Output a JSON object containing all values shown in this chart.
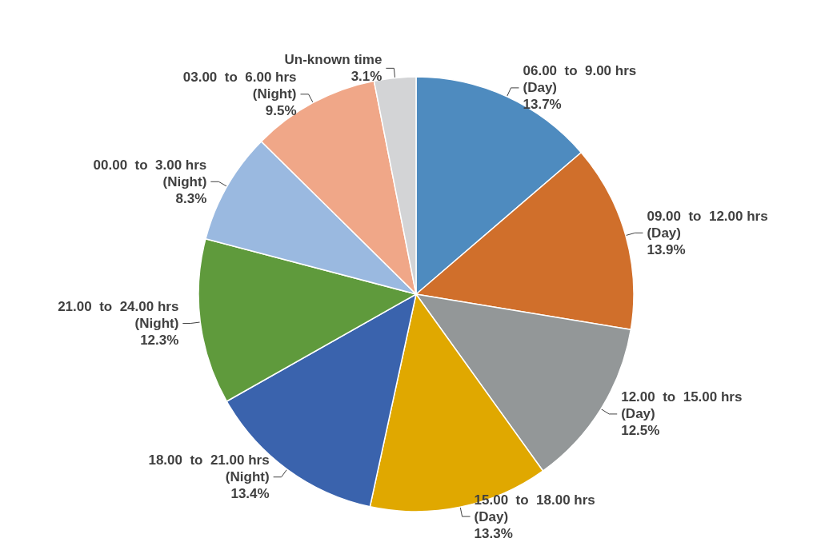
{
  "chart_data": {
    "type": "pie",
    "categories": [
      "06.00  to  9.00 hrs (Day)",
      "09.00  to  12.00 hrs (Day)",
      "12.00  to  15.00 hrs (Day)",
      "15.00  to  18.00 hrs (Day)",
      "18.00  to  21.00 hrs (Night)",
      "21.00  to  24.00 hrs (Night)",
      "00.00  to  3.00 hrs (Night)",
      "03.00  to  6.00 hrs (Night)",
      "Un-known time"
    ],
    "values": [
      13.7,
      13.9,
      12.5,
      13.3,
      13.4,
      12.3,
      8.3,
      9.5,
      3.1
    ],
    "value_labels": [
      "13.7%",
      "13.9%",
      "12.5%",
      "13.3%",
      "13.4%",
      "12.3%",
      "8.3%",
      "9.5%",
      "3.1%"
    ],
    "colors": [
      "#4e8bbf",
      "#d06f2b",
      "#939798",
      "#e0a800",
      "#3a63ad",
      "#5f9a3c",
      "#9ab9e0",
      "#f0a788",
      "#d3d4d6"
    ],
    "legend": false
  }
}
